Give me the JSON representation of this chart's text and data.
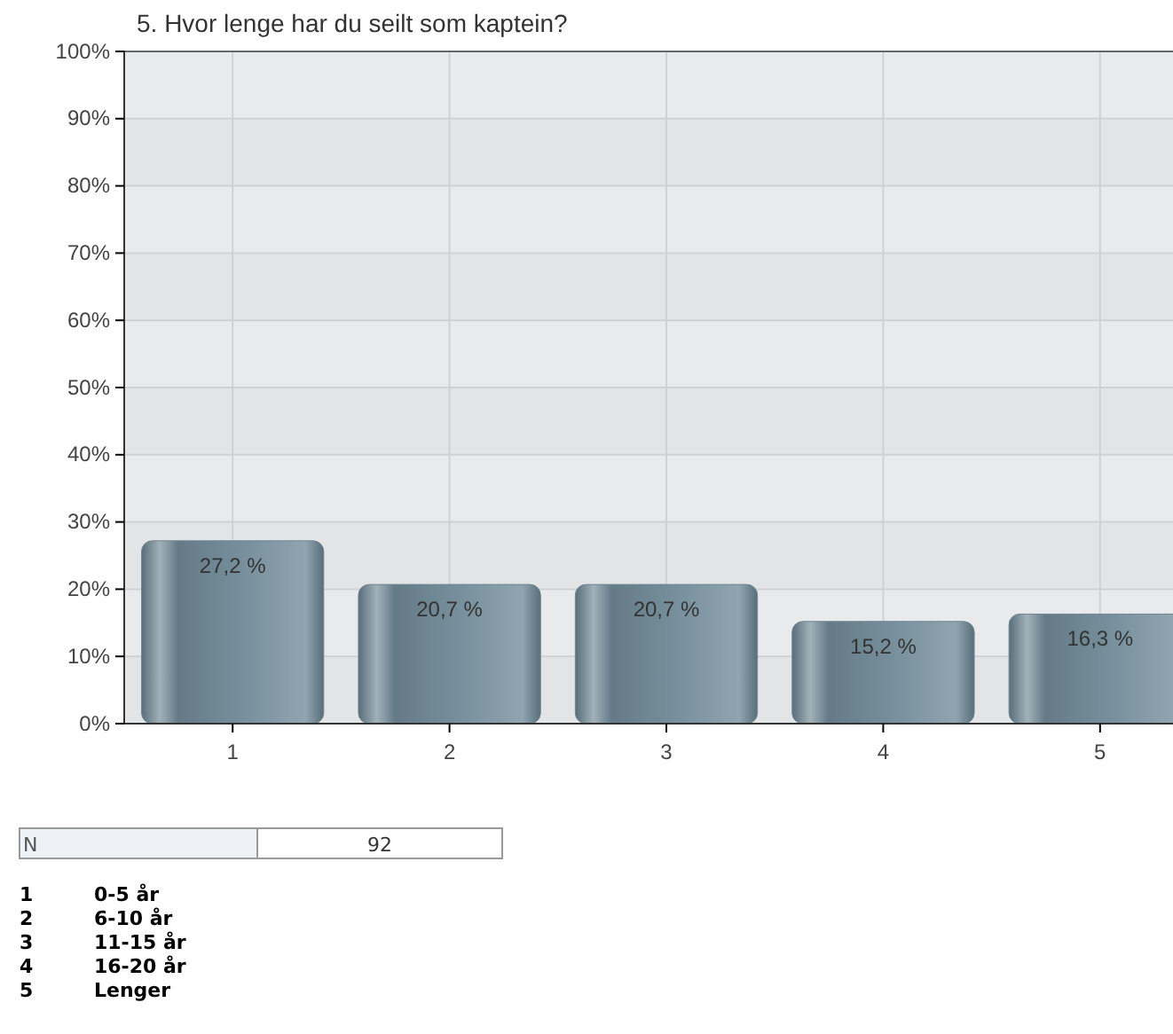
{
  "chart_data": {
    "type": "bar",
    "title": "5. Hvor lenge har du seilt som kaptein?",
    "categories": [
      "1",
      "2",
      "3",
      "4",
      "5"
    ],
    "values": [
      27.2,
      20.7,
      20.7,
      15.2,
      16.3
    ],
    "value_labels": [
      "27,2 %",
      "20,7 %",
      "20,7 %",
      "15,2 %",
      "16,3 %"
    ],
    "color": "#6e8592",
    "ylim": [
      0,
      100
    ],
    "yticks": [
      {
        "value": 0,
        "label": "0%"
      },
      {
        "value": 10,
        "label": "10%"
      },
      {
        "value": 20,
        "label": "20%"
      },
      {
        "value": 30,
        "label": "30%"
      },
      {
        "value": 40,
        "label": "40%"
      },
      {
        "value": 50,
        "label": "50%"
      },
      {
        "value": 60,
        "label": "60%"
      },
      {
        "value": 70,
        "label": "70%"
      },
      {
        "value": 80,
        "label": "80%"
      },
      {
        "value": 90,
        "label": "90%"
      },
      {
        "value": 100,
        "label": "100%"
      }
    ],
    "grid": true,
    "annotations": [
      "N",
      "92",
      "1",
      "0-5 år",
      "2",
      "6-10 år",
      "3",
      "11-15 år",
      "4",
      "16-20 år",
      "5",
      "Lenger"
    ]
  }
}
